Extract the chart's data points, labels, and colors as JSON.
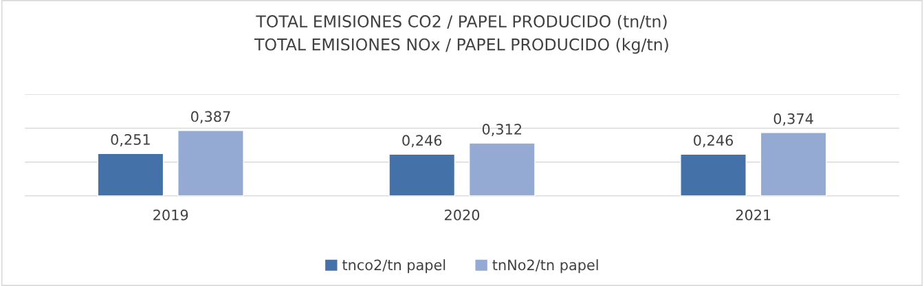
{
  "chart_data": {
    "type": "bar",
    "title": "TOTAL EMISIONES CO2 / PAPEL PRODUCIDO (tn/tn)\nTOTAL EMISIONES NOx / PAPEL PRODUCIDO (kg/tn)",
    "categories": [
      "2019",
      "2020",
      "2021"
    ],
    "series": [
      {
        "name": "tnco2/tn papel",
        "color": "#4472a8",
        "values": [
          0.251,
          0.246,
          0.246
        ],
        "value_labels": [
          "0,251",
          "0,246",
          "0,246"
        ]
      },
      {
        "name": "tnNo2/tn papel",
        "color": "#95aad3",
        "values": [
          0.387,
          0.312,
          0.374
        ],
        "value_labels": [
          "0,387",
          "0,312",
          "0,374"
        ]
      }
    ],
    "ylim": [
      0,
      0.6
    ],
    "yticks": [
      {
        "value": 0,
        "label": null
      },
      {
        "value": 0.2,
        "label": null
      },
      {
        "value": 0.4,
        "label": null
      },
      {
        "value": 0.6,
        "label": null
      }
    ],
    "tick_labels": "x",
    "grid": "y",
    "legend": "bottom"
  }
}
